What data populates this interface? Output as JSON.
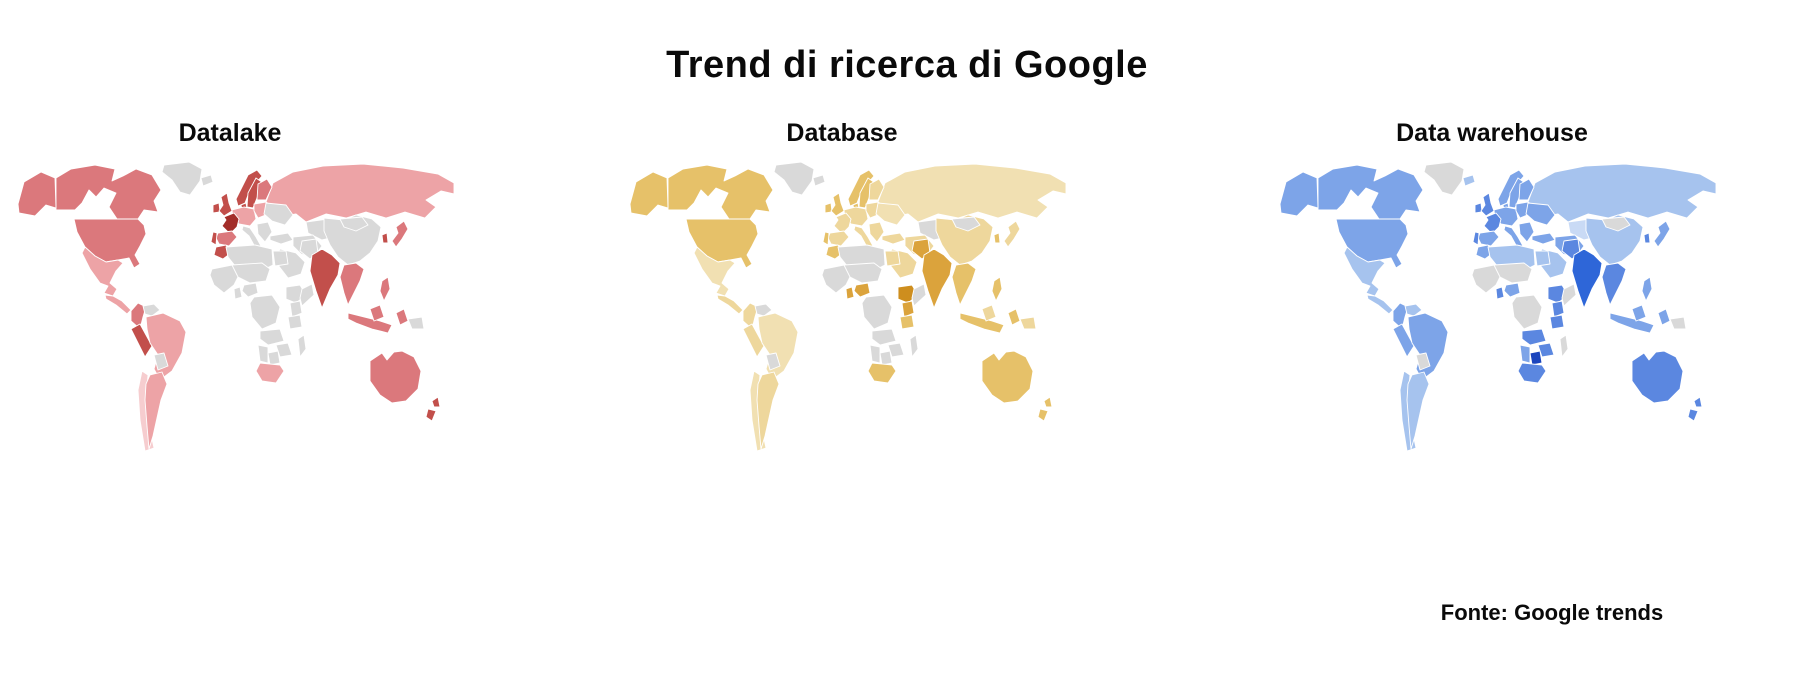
{
  "page": {
    "title": "Trend di ricerca di Google",
    "source_note": "Fonte: Google trends"
  },
  "style": {
    "background": "#ffffff",
    "no_data_color": "#d9d9d9",
    "border_color": "#ffffff"
  },
  "chart_data": [
    {
      "type": "choropleth",
      "title": "Datalake",
      "legend": "none shown; color intensity = relative search interest (1 lightest – 5 darkest)",
      "palette": {
        "1": "#f6cdcf",
        "2": "#eda3a6",
        "3": "#db787c",
        "4": "#c24f4b",
        "5": "#a32d29"
      },
      "regions": {
        "alaska": 3,
        "canada": 3,
        "usa": 3,
        "mexico": 2,
        "central-america": 2,
        "colombia": 3,
        "peru": 4,
        "brazil": 2,
        "chile": 1,
        "argentina": 2,
        "ireland": 4,
        "uk": 4,
        "norway": 4,
        "sweden": 4,
        "finland": 3,
        "denmark": 4,
        "germany-central": 2,
        "poland-baltics": 2,
        "france": 5,
        "spain": 3,
        "portugal": 4,
        "russia": 2,
        "morocco": 4,
        "south-africa": 2,
        "india": 4,
        "korea": 4,
        "japan": 3,
        "sea-mainland": 3,
        "philippines": 3,
        "indonesia": 3,
        "borneo": 3,
        "sulawesi": 3,
        "australia": 3,
        "new-zealand": 4
      }
    },
    {
      "type": "choropleth",
      "title": "Database",
      "legend": "none shown; color intensity = relative search interest (1 lightest – 5 darkest)",
      "palette": {
        "1": "#f1e0b2",
        "2": "#eed79c",
        "3": "#e6c169",
        "4": "#dba33c",
        "5": "#ce8e1e"
      },
      "regions": {
        "alaska": 3,
        "canada": 3,
        "usa": 3,
        "mexico": 1,
        "central-america": 2,
        "colombia": 2,
        "peru": 2,
        "brazil": 1,
        "chile": 1,
        "argentina": 2,
        "ireland": 3,
        "uk": 3,
        "norway": 3,
        "sweden": 3,
        "finland": 2,
        "denmark": 3,
        "germany-central": 2,
        "poland-baltics": 2,
        "france": 2,
        "spain": 2,
        "portugal": 3,
        "italy": 2,
        "balkans": 2,
        "eastern-europe": 1,
        "russia": 1,
        "turkey": 2,
        "middle-east": 2,
        "saudi-arabia": 2,
        "morocco": 3,
        "egypt": 2,
        "nigeria": 4,
        "ghana": 4,
        "ethiopia": 5,
        "kenya": 4,
        "tanzania": 3,
        "south-africa": 3,
        "india": 4,
        "pakistan": 4,
        "china": 2,
        "korea": 3,
        "japan": 2,
        "sea-mainland": 3,
        "philippines": 3,
        "indonesia": 3,
        "borneo": 2,
        "sulawesi": 3,
        "papua": 2,
        "australia": 3,
        "new-zealand": 3
      }
    },
    {
      "type": "choropleth",
      "title": "Data warehouse",
      "legend": "none shown; color intensity = relative search interest (1 lightest – 6 darkest)",
      "palette": {
        "1": "#c9daf5",
        "2": "#a6c3ee",
        "3": "#7da4e8",
        "4": "#5b87e0",
        "5": "#2e66d8",
        "6": "#1b45bd"
      },
      "regions": {
        "alaska": 3,
        "canada": 3,
        "usa": 3,
        "mexico": 2,
        "central-america": 2,
        "colombia": 3,
        "venezuela": 2,
        "peru": 3,
        "brazil": 3,
        "chile": 2,
        "argentina": 2,
        "iceland": 2,
        "ireland": 4,
        "uk": 4,
        "norway": 3,
        "sweden": 3,
        "finland": 3,
        "denmark": 3,
        "germany-central": 3,
        "poland-baltics": 3,
        "france": 4,
        "spain": 3,
        "portugal": 4,
        "italy": 3,
        "balkans": 3,
        "eastern-europe": 3,
        "russia": 2,
        "kazakhstan": 1,
        "turkey": 3,
        "middle-east": 3,
        "saudi-arabia": 2,
        "morocco": 3,
        "algeria-libya": 2,
        "egypt": 2,
        "nigeria": 3,
        "ghana": 4,
        "ethiopia": 4,
        "kenya": 4,
        "tanzania": 4,
        "angola-zambia": 4,
        "zimbabwe-mozambique": 4,
        "namibia": 3,
        "botswana": 6,
        "south-africa": 4,
        "india": 5,
        "pakistan": 4,
        "china": 2,
        "korea": 4,
        "japan": 3,
        "sea-mainland": 4,
        "philippines": 3,
        "indonesia": 3,
        "borneo": 3,
        "sulawesi": 3,
        "australia": 4,
        "new-zealand": 4
      }
    }
  ]
}
